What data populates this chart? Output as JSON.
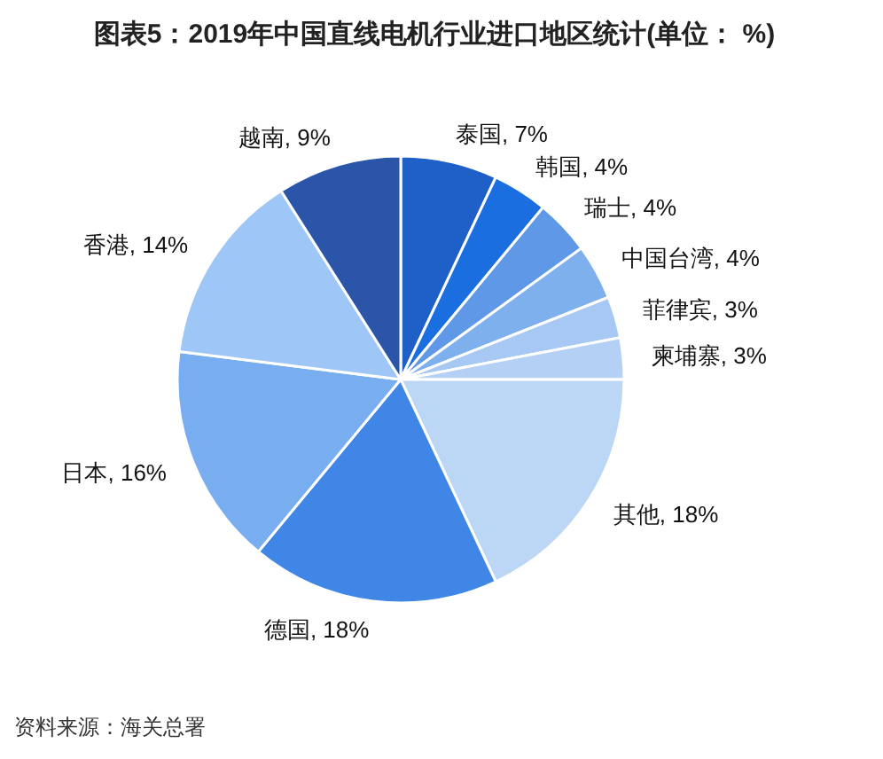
{
  "chart_data": {
    "type": "pie",
    "title": "图表5：2019年中国直线电机行业进口地区统计(单位： %)",
    "categories": [
      "泰国",
      "韩国",
      "瑞士",
      "中国台湾",
      "菲律宾",
      "柬埔寨",
      "其他",
      "德国",
      "日本",
      "香港",
      "越南"
    ],
    "values": [
      7,
      4,
      4,
      4,
      3,
      3,
      18,
      18,
      16,
      14,
      9
    ],
    "value_labels": [
      "7%",
      "4%",
      "4%",
      "4%",
      "3%",
      "3%",
      "18%",
      "18%",
      "16%",
      "14%",
      "9%"
    ],
    "colors": [
      "#1e5fc8",
      "#1a6ee0",
      "#5f98e6",
      "#7fb0ee",
      "#a6c8f2",
      "#b4d0f4",
      "#bcd6f6",
      "#3f86e6",
      "#78aef0",
      "#9ec6f6",
      "#2a55a8"
    ],
    "annotations": [
      "资料来源：海关总署"
    ]
  }
}
